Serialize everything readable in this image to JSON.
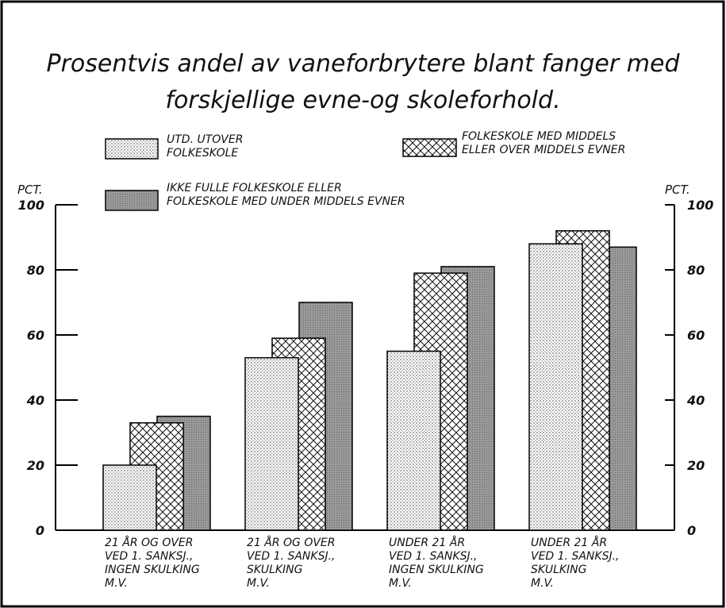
{
  "chart_data": {
    "type": "bar",
    "title": "Prosentvis andel av vaneforbrytere blant fanger med\nforskjellige  evne-og skoleforhold.",
    "y_label_left": "PCT.",
    "y_label_right": "PCT.",
    "categories": [
      "21 ÅR OG OVER\nVED 1. SANKSJ.,\nINGEN SKULKING\nM.V.",
      "21 ÅR OG OVER\nVED 1. SANKSJ.,\nSKULKING\nM.V.",
      "UNDER 21 ÅR\nVED 1. SANKSJ.,\nINGEN SKULKING\nM.V.",
      "UNDER 21 ÅR\nVED 1. SANKSJ.,\nSKULKING\nM.V."
    ],
    "series": [
      {
        "name": "UTD. UTOVER\nFOLKESKOLE",
        "pattern": "dots",
        "color": "#ffffff",
        "values": [
          20,
          53,
          55,
          88
        ]
      },
      {
        "name": "FOLKESKOLE MED MIDDELS\nELLER OVER MIDDELS EVNER",
        "pattern": "crosshatch",
        "color": "#ffffff",
        "values": [
          33,
          59,
          79,
          92
        ]
      },
      {
        "name": "IKKE FULLE FOLKESKOLE ELLER\nFOLKESKOLE MED UNDER MIDDELS EVNER",
        "pattern": "solid",
        "color": "#9a9a9a",
        "values": [
          35,
          70,
          81,
          87
        ]
      }
    ],
    "ylim": [
      0,
      100
    ],
    "yticks": [
      0,
      20,
      40,
      60,
      80,
      100
    ]
  }
}
